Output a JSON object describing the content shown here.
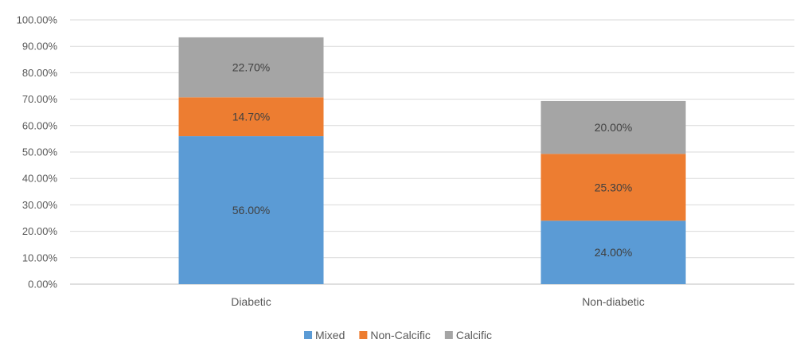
{
  "chart_data": {
    "type": "bar",
    "stacked": true,
    "categories": [
      "Diabetic",
      "Non-diabetic"
    ],
    "series": [
      {
        "name": "Mixed",
        "values": [
          56.0,
          24.0
        ],
        "labels": [
          "56.00%",
          "24.00%"
        ],
        "color": "#5b9bd5"
      },
      {
        "name": "Non-Calcific",
        "values": [
          14.7,
          25.3
        ],
        "labels": [
          "14.70%",
          "25.30%"
        ],
        "color": "#ed7d31"
      },
      {
        "name": "Calcific",
        "values": [
          22.7,
          20.0
        ],
        "labels": [
          "22.70%",
          "20.00%"
        ],
        "color": "#a5a5a5"
      }
    ],
    "ylim": [
      0,
      100
    ],
    "yticks": [
      "0.00%",
      "10.00%",
      "20.00%",
      "30.00%",
      "40.00%",
      "50.00%",
      "60.00%",
      "70.00%",
      "80.00%",
      "90.00%",
      "100.00%"
    ],
    "grid": true,
    "legend_position": "bottom"
  }
}
